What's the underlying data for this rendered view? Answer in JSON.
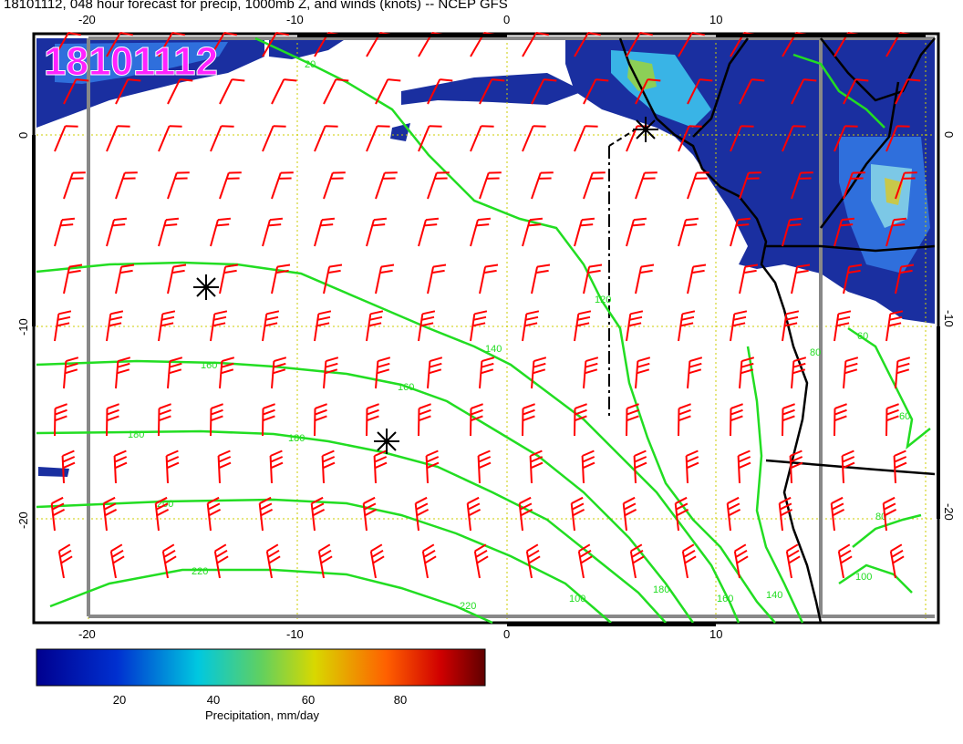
{
  "title": "18101112, 048 hour forecast for precip, 1000mb Z, and winds (knots) -- NCEP GFS",
  "stamp": "18101112",
  "lon_ticks_top": [
    "-20",
    "-10",
    "0",
    "10"
  ],
  "lon_ticks_bottom": [
    "-20",
    "-10",
    "0",
    "10"
  ],
  "lat_ticks_left": [
    "0",
    "-10",
    "-20"
  ],
  "lat_ticks_right": [
    "0",
    "-10",
    "-20"
  ],
  "contour_labels": [
    "20",
    "120",
    "140",
    "160",
    "160",
    "180",
    "180",
    "200",
    "220",
    "220",
    "100",
    "180",
    "160",
    "140",
    "80",
    "60",
    "60",
    "80",
    "100"
  ],
  "colorbar": {
    "title": "Precipitation, mm/day",
    "ticks": [
      "20",
      "40",
      "60",
      "80"
    ]
  },
  "colors": {
    "contour": "#22dd22",
    "barb": "#ff0000",
    "grid": "#cccc00",
    "stamp": "#ff22ff"
  }
}
